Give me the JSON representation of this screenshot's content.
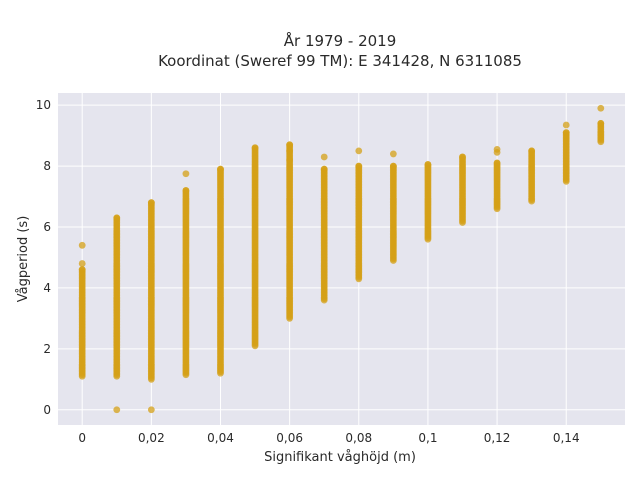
{
  "chart_data": {
    "type": "scatter",
    "title_line1": "År 1979 - 2019",
    "title_line2": "Koordinat (Sweref 99 TM): E 341428, N 6311085",
    "xlabel": "Signifikant våghöjd (m)",
    "ylabel": "Vågperiod (s)",
    "xlim": [
      -0.007,
      0.157
    ],
    "ylim": [
      -0.5,
      10.4
    ],
    "x_ticks": [
      0,
      0.02,
      0.04,
      0.06,
      0.08,
      0.1,
      0.12,
      0.14
    ],
    "x_tick_labels": [
      "0",
      "0,02",
      "0,04",
      "0,06",
      "0,08",
      "0,1",
      "0,12",
      "0,14"
    ],
    "y_ticks": [
      0,
      2,
      4,
      6,
      8,
      10
    ],
    "y_tick_labels": [
      "0",
      "2",
      "4",
      "6",
      "8",
      "10"
    ],
    "grid": true,
    "marker_color": "#d4a017",
    "plot_bg": "#e5e5ee",
    "series": [
      {
        "x": 0,
        "y_min": 1.1,
        "y_max": 4.6,
        "outliers": [
          4.8,
          5.4
        ]
      },
      {
        "x": 0.01,
        "y_min": 1.1,
        "y_max": 6.3,
        "outliers": [
          0
        ]
      },
      {
        "x": 0.02,
        "y_min": 1.0,
        "y_max": 6.8,
        "outliers": [
          0
        ]
      },
      {
        "x": 0.03,
        "y_min": 1.15,
        "y_max": 7.2,
        "outliers": [
          7.75
        ]
      },
      {
        "x": 0.04,
        "y_min": 1.2,
        "y_max": 7.9,
        "outliers": []
      },
      {
        "x": 0.05,
        "y_min": 2.1,
        "y_max": 8.6,
        "outliers": []
      },
      {
        "x": 0.06,
        "y_min": 3.0,
        "y_max": 8.7,
        "outliers": [
          8.2,
          8.5
        ]
      },
      {
        "x": 0.07,
        "y_min": 3.6,
        "y_max": 7.9,
        "outliers": [
          8.3
        ]
      },
      {
        "x": 0.08,
        "y_min": 4.3,
        "y_max": 8.0,
        "outliers": [
          8.5
        ]
      },
      {
        "x": 0.09,
        "y_min": 4.9,
        "y_max": 8.0,
        "outliers": [
          8.4
        ]
      },
      {
        "x": 0.1,
        "y_min": 5.6,
        "y_max": 8.05,
        "outliers": []
      },
      {
        "x": 0.11,
        "y_min": 6.15,
        "y_max": 8.3,
        "outliers": []
      },
      {
        "x": 0.12,
        "y_min": 6.6,
        "y_max": 8.1,
        "outliers": [
          8.45,
          8.55
        ]
      },
      {
        "x": 0.13,
        "y_min": 6.85,
        "y_max": 8.5,
        "outliers": []
      },
      {
        "x": 0.14,
        "y_min": 7.5,
        "y_max": 9.1,
        "outliers": [
          9.35
        ]
      },
      {
        "x": 0.15,
        "y_min": 8.8,
        "y_max": 9.4,
        "outliers": [
          9.9
        ]
      }
    ]
  }
}
